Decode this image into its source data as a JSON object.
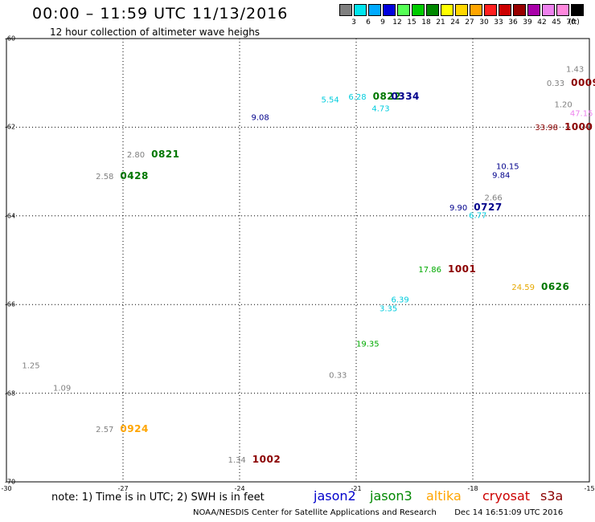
{
  "header": {
    "title": "00:00 – 11:59 UTC 11/13/2016",
    "subtitle": "12 hour collection of altimeter wave heighs"
  },
  "colorbar": {
    "labels": [
      "3",
      "6",
      "9",
      "12",
      "15",
      "18",
      "21",
      "24",
      "27",
      "30",
      "33",
      "36",
      "39",
      "42",
      "45",
      "70",
      "(ft)"
    ],
    "colors": [
      "#808080",
      "#00e5ee",
      "#00aaff",
      "#0000dd",
      "#55ff55",
      "#00cc00",
      "#008800",
      "#ffff00",
      "#ffd700",
      "#ffa500",
      "#ff2020",
      "#cc0000",
      "#990000",
      "#aa00aa",
      "#ee82ee",
      "#ff88dd",
      "#000000"
    ]
  },
  "map": {
    "lon_ticks": [
      "-30",
      "-27",
      "-24",
      "-21",
      "-18",
      "-15"
    ],
    "lat_ticks": [
      "-60",
      "-62",
      "-64",
      "-66",
      "-68",
      "-70"
    ],
    "lon_range": [
      -30,
      -15
    ],
    "lat_range": [
      -60,
      -70
    ],
    "observations": [
      {
        "swh": "1.43",
        "time": "",
        "lon": -15.6,
        "lat": -60.7,
        "color": "#808080"
      },
      {
        "swh": "0.33",
        "time": "0009",
        "lon": -16.1,
        "lat": -61.0,
        "color": "#808080",
        "tcolor": "#8b0000"
      },
      {
        "swh": "6.28",
        "time": "0822",
        "lon": -21.2,
        "lat": -61.3,
        "color": "#00ccdd",
        "tcolor": "#007700"
      },
      {
        "swh": "",
        "time": "0334",
        "lon": -20.1,
        "lat": -61.3,
        "color": "#00ccdd",
        "tcolor": "#00008b"
      },
      {
        "swh": "5.54",
        "time": "",
        "lon": -21.9,
        "lat": -61.4,
        "color": "#00ccdd"
      },
      {
        "swh": "4.73",
        "time": "",
        "lon": -20.6,
        "lat": -61.6,
        "color": "#00ccdd"
      },
      {
        "swh": "1.20",
        "time": "",
        "lon": -15.9,
        "lat": -61.5,
        "color": "#808080"
      },
      {
        "swh": "47.15",
        "time": "",
        "lon": -15.5,
        "lat": -61.7,
        "color": "#ee82ee"
      },
      {
        "swh": "9.08",
        "time": "",
        "lon": -23.7,
        "lat": -61.8,
        "color": "#00008b"
      },
      {
        "swh": "33.98",
        "time": "1000",
        "lon": -16.4,
        "lat": -62.0,
        "color": "#8b0000",
        "tcolor": "#8b0000"
      },
      {
        "swh": "2.80",
        "time": "0821",
        "lon": -26.9,
        "lat": -62.6,
        "color": "#808080",
        "tcolor": "#007700"
      },
      {
        "swh": "2.58",
        "time": "0428",
        "lon": -27.7,
        "lat": -63.1,
        "color": "#808080",
        "tcolor": "#007700"
      },
      {
        "swh": "10.15",
        "time": "",
        "lon": -17.4,
        "lat": -62.9,
        "color": "#00008b"
      },
      {
        "swh": "9.84",
        "time": "",
        "lon": -17.5,
        "lat": -63.1,
        "color": "#00008b"
      },
      {
        "swh": "2.66",
        "time": "",
        "lon": -17.7,
        "lat": -63.6,
        "color": "#808080"
      },
      {
        "swh": "9.90",
        "time": "0727",
        "lon": -18.6,
        "lat": -63.8,
        "color": "#00008b",
        "tcolor": "#00008b"
      },
      {
        "swh": "6.77",
        "time": "",
        "lon": -18.1,
        "lat": -64.0,
        "color": "#00ccdd"
      },
      {
        "swh": "17.86",
        "time": "1001",
        "lon": -19.4,
        "lat": -65.2,
        "color": "#00aa00",
        "tcolor": "#8b0000"
      },
      {
        "swh": "24.59",
        "time": "0626",
        "lon": -17.0,
        "lat": -65.6,
        "color": "#e6a800",
        "tcolor": "#007700"
      },
      {
        "swh": "6.39",
        "time": "",
        "lon": -20.1,
        "lat": -65.9,
        "color": "#00ccdd"
      },
      {
        "swh": "3.35",
        "time": "",
        "lon": -20.4,
        "lat": -66.1,
        "color": "#00ccdd"
      },
      {
        "swh": "19.35",
        "time": "",
        "lon": -21.0,
        "lat": -66.9,
        "color": "#00aa00"
      },
      {
        "swh": "1.25",
        "time": "",
        "lon": -29.6,
        "lat": -67.4,
        "color": "#808080"
      },
      {
        "swh": "0.33",
        "time": "",
        "lon": -21.7,
        "lat": -67.6,
        "color": "#808080"
      },
      {
        "swh": "1.09",
        "time": "",
        "lon": -28.8,
        "lat": -67.9,
        "color": "#808080"
      },
      {
        "swh": "2.57",
        "time": "0924",
        "lon": -27.7,
        "lat": -68.8,
        "color": "#808080",
        "tcolor": "#ffa500"
      },
      {
        "swh": "1.34",
        "time": "1002",
        "lon": -24.3,
        "lat": -69.5,
        "color": "#808080",
        "tcolor": "#8b0000"
      }
    ]
  },
  "legend": {
    "note": "note: 1) Time is in UTC; 2) SWH is in feet",
    "satellites": [
      {
        "name": "jason2",
        "color": "#0000cc"
      },
      {
        "name": "jason3",
        "color": "#008800"
      },
      {
        "name": "altika",
        "color": "#ffa500"
      },
      {
        "name": "cryosat",
        "color": "#cc0000"
      },
      {
        "name": "s3a",
        "color": "#8b0000"
      }
    ]
  },
  "footer": {
    "credit": "NOAA/NESDIS Center for Satellite Applications and Research",
    "timestamp": "Dec 14 16:51:09 UTC 2016"
  }
}
